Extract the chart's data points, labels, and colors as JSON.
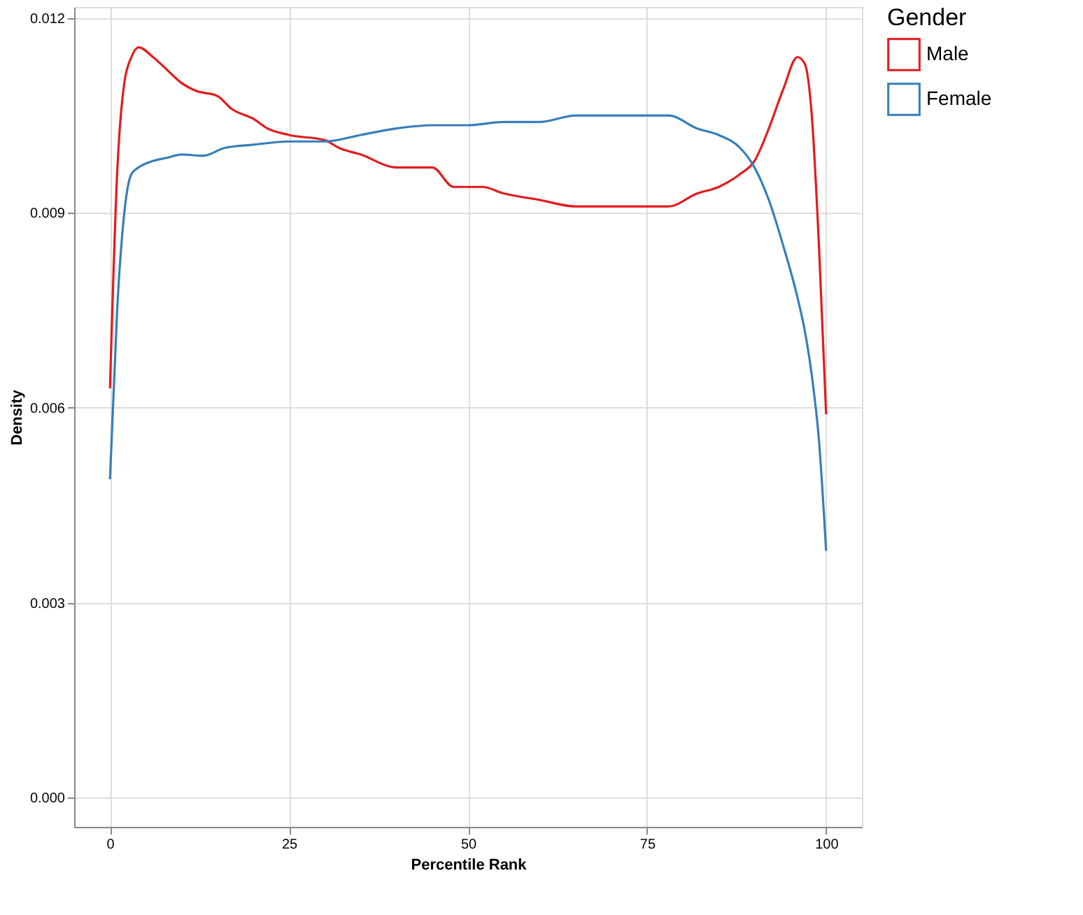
{
  "chart_data": {
    "type": "line",
    "xlabel": "Percentile Rank",
    "ylabel": "Density",
    "legend_title": "Gender",
    "legend": "right",
    "grid": true,
    "marker": "none",
    "line_style": "solid",
    "xlim": [
      -5,
      105
    ],
    "xticks": [
      0,
      25,
      50,
      75,
      100
    ],
    "ylim": [
      -0.00045,
      0.01217
    ],
    "yticks": [
      {
        "value": 0,
        "label": "0.000"
      },
      {
        "value": 0.003,
        "label": "0.003"
      },
      {
        "value": 0.006,
        "label": "0.006"
      },
      {
        "value": 0.009,
        "label": "0.009"
      },
      {
        "value": 0.012,
        "label": "0.012"
      }
    ],
    "series": [
      {
        "name": "Male",
        "color": "#e41a1c",
        "x": [
          0,
          1,
          2,
          3,
          4,
          6,
          8,
          10,
          12,
          15,
          17,
          20,
          22,
          25,
          30,
          32,
          35,
          40,
          45,
          48,
          52,
          55,
          60,
          65,
          70,
          75,
          78,
          82,
          85,
          88,
          90,
          92,
          94,
          96,
          97,
          98,
          99,
          100
        ],
        "values": [
          0.0063,
          0.0096,
          0.011,
          0.0114,
          0.01155,
          0.0114,
          0.0112,
          0.011,
          0.01088,
          0.0108,
          0.0106,
          0.01045,
          0.0103,
          0.0102,
          0.01012,
          0.01,
          0.0099,
          0.0097,
          0.0097,
          0.0094,
          0.0094,
          0.0093,
          0.0092,
          0.0091,
          0.0091,
          0.0091,
          0.0091,
          0.0093,
          0.0094,
          0.0096,
          0.0098,
          0.0103,
          0.0109,
          0.0114,
          0.0113,
          0.0105,
          0.0085,
          0.0059
        ]
      },
      {
        "name": "Female",
        "color": "#377eb8",
        "x": [
          0,
          1,
          2,
          3,
          4,
          6,
          8,
          10,
          13,
          16,
          20,
          25,
          30,
          35,
          40,
          45,
          50,
          55,
          60,
          65,
          70,
          75,
          78,
          82,
          85,
          88,
          90,
          92,
          94,
          96,
          97,
          98,
          99,
          100
        ],
        "values": [
          0.0049,
          0.0075,
          0.009,
          0.0096,
          0.0097,
          0.0098,
          0.00985,
          0.0099,
          0.00988,
          0.01,
          0.01005,
          0.0101,
          0.0101,
          0.0102,
          0.0103,
          0.01035,
          0.01035,
          0.0104,
          0.0104,
          0.0105,
          0.0105,
          0.0105,
          0.0105,
          0.0103,
          0.0102,
          0.01,
          0.0097,
          0.0092,
          0.0085,
          0.0077,
          0.0072,
          0.0065,
          0.0055,
          0.0038
        ]
      }
    ]
  }
}
